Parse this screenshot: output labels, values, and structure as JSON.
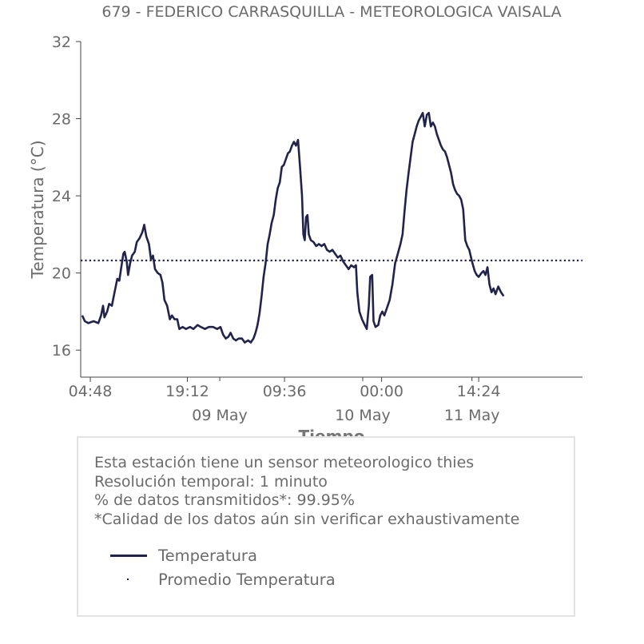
{
  "chart_data": {
    "type": "line",
    "title": "679 - FEDERICO CARRASQUILLA - METEOROLOGICA VAISALA",
    "xlabel": "Tiempo",
    "ylabel": "Temperatura (°C)",
    "ylim": [
      14.6,
      32
    ],
    "yticks": [
      16,
      20,
      24,
      28,
      32
    ],
    "x_range_hours": [
      0,
      61.3
    ],
    "x_unit": "hours since 2024-05-08 04:48 (approx.)",
    "xticks": [
      {
        "h": 0,
        "label": "04:48"
      },
      {
        "h": 14.4,
        "label": "19:12"
      },
      {
        "h": 28.8,
        "label": "09:36"
      },
      {
        "h": 43.2,
        "label": "00:00"
      },
      {
        "h": 57.6,
        "label": "14:24"
      }
    ],
    "minor_xticks_h": [
      19.2,
      40.4,
      56.6
    ],
    "date_labels": [
      {
        "h": 19.2,
        "label": "09 May"
      },
      {
        "h": 40.4,
        "label": "10 May"
      },
      {
        "h": 56.6,
        "label": "11 May"
      }
    ],
    "series": [
      {
        "name": "Temperatura",
        "color": "#22234a",
        "style": "solid",
        "points": [
          [
            -1.2,
            17.8
          ],
          [
            -0.8,
            17.5
          ],
          [
            -0.3,
            17.4
          ],
          [
            0.5,
            17.5
          ],
          [
            1.2,
            17.4
          ],
          [
            1.6,
            17.8
          ],
          [
            1.9,
            18.3
          ],
          [
            2.1,
            17.7
          ],
          [
            2.5,
            18.0
          ],
          [
            2.8,
            18.4
          ],
          [
            3.2,
            18.3
          ],
          [
            3.6,
            19.0
          ],
          [
            4.0,
            19.7
          ],
          [
            4.3,
            19.6
          ],
          [
            4.6,
            20.3
          ],
          [
            4.9,
            21.0
          ],
          [
            5.1,
            21.1
          ],
          [
            5.4,
            20.6
          ],
          [
            5.6,
            19.9
          ],
          [
            5.9,
            20.5
          ],
          [
            6.2,
            20.9
          ],
          [
            6.6,
            21.1
          ],
          [
            6.9,
            21.6
          ],
          [
            7.3,
            21.8
          ],
          [
            7.7,
            22.1
          ],
          [
            8.0,
            22.5
          ],
          [
            8.3,
            21.9
          ],
          [
            8.7,
            21.5
          ],
          [
            9.0,
            20.7
          ],
          [
            9.3,
            20.9
          ],
          [
            9.6,
            20.2
          ],
          [
            10.0,
            20.0
          ],
          [
            10.4,
            19.9
          ],
          [
            10.7,
            19.5
          ],
          [
            11.0,
            18.6
          ],
          [
            11.4,
            18.3
          ],
          [
            11.8,
            17.6
          ],
          [
            12.1,
            17.8
          ],
          [
            12.5,
            17.6
          ],
          [
            12.9,
            17.6
          ],
          [
            13.2,
            17.1
          ],
          [
            13.7,
            17.2
          ],
          [
            14.2,
            17.1
          ],
          [
            14.8,
            17.2
          ],
          [
            15.3,
            17.1
          ],
          [
            15.9,
            17.3
          ],
          [
            16.4,
            17.2
          ],
          [
            17.0,
            17.1
          ],
          [
            17.6,
            17.2
          ],
          [
            18.2,
            17.2
          ],
          [
            18.8,
            17.1
          ],
          [
            19.3,
            17.2
          ],
          [
            19.7,
            16.8
          ],
          [
            20.1,
            16.6
          ],
          [
            20.5,
            16.7
          ],
          [
            20.8,
            16.9
          ],
          [
            21.2,
            16.6
          ],
          [
            21.6,
            16.5
          ],
          [
            22.0,
            16.6
          ],
          [
            22.5,
            16.6
          ],
          [
            22.9,
            16.4
          ],
          [
            23.4,
            16.5
          ],
          [
            23.8,
            16.4
          ],
          [
            24.2,
            16.6
          ],
          [
            24.5,
            16.9
          ],
          [
            24.8,
            17.3
          ],
          [
            25.1,
            17.9
          ],
          [
            25.4,
            18.8
          ],
          [
            25.7,
            19.8
          ],
          [
            26.0,
            20.5
          ],
          [
            26.3,
            21.5
          ],
          [
            26.6,
            22.0
          ],
          [
            26.9,
            22.6
          ],
          [
            27.2,
            23.0
          ],
          [
            27.5,
            23.8
          ],
          [
            27.8,
            24.4
          ],
          [
            28.1,
            24.7
          ],
          [
            28.4,
            25.5
          ],
          [
            28.7,
            25.6
          ],
          [
            29.0,
            25.9
          ],
          [
            29.3,
            26.2
          ],
          [
            29.6,
            26.3
          ],
          [
            29.9,
            26.6
          ],
          [
            30.2,
            26.8
          ],
          [
            30.5,
            26.6
          ],
          [
            30.8,
            26.9
          ],
          [
            31.1,
            25.5
          ],
          [
            31.4,
            24.0
          ],
          [
            31.6,
            22.0
          ],
          [
            31.8,
            21.7
          ],
          [
            32.0,
            22.9
          ],
          [
            32.2,
            23.0
          ],
          [
            32.4,
            22.0
          ],
          [
            32.7,
            21.7
          ],
          [
            33.1,
            21.6
          ],
          [
            33.5,
            21.4
          ],
          [
            33.9,
            21.5
          ],
          [
            34.3,
            21.4
          ],
          [
            34.7,
            21.5
          ],
          [
            35.1,
            21.2
          ],
          [
            35.5,
            21.1
          ],
          [
            35.9,
            21.2
          ],
          [
            36.3,
            21.0
          ],
          [
            36.7,
            20.8
          ],
          [
            37.1,
            20.9
          ],
          [
            37.5,
            20.6
          ],
          [
            37.9,
            20.4
          ],
          [
            38.3,
            20.2
          ],
          [
            38.7,
            20.4
          ],
          [
            39.1,
            20.3
          ],
          [
            39.4,
            20.4
          ],
          [
            39.6,
            19.0
          ],
          [
            39.9,
            18.0
          ],
          [
            40.3,
            17.6
          ],
          [
            40.7,
            17.3
          ],
          [
            41.0,
            17.1
          ],
          [
            41.3,
            18.3
          ],
          [
            41.5,
            19.8
          ],
          [
            41.8,
            19.9
          ],
          [
            42.0,
            17.5
          ],
          [
            42.3,
            17.2
          ],
          [
            42.7,
            17.3
          ],
          [
            43.0,
            17.8
          ],
          [
            43.3,
            18.0
          ],
          [
            43.6,
            17.8
          ],
          [
            44.0,
            18.2
          ],
          [
            44.4,
            18.6
          ],
          [
            44.8,
            19.4
          ],
          [
            45.2,
            20.5
          ],
          [
            45.6,
            21.0
          ],
          [
            46.0,
            21.5
          ],
          [
            46.3,
            22.0
          ],
          [
            46.6,
            23.2
          ],
          [
            46.9,
            24.3
          ],
          [
            47.2,
            25.2
          ],
          [
            47.5,
            26.0
          ],
          [
            47.8,
            26.8
          ],
          [
            48.1,
            27.2
          ],
          [
            48.4,
            27.6
          ],
          [
            48.7,
            27.9
          ],
          [
            49.0,
            28.1
          ],
          [
            49.3,
            28.3
          ],
          [
            49.6,
            27.6
          ],
          [
            49.9,
            28.2
          ],
          [
            50.2,
            28.3
          ],
          [
            50.5,
            27.6
          ],
          [
            50.8,
            27.8
          ],
          [
            51.1,
            27.6
          ],
          [
            51.4,
            27.2
          ],
          [
            51.7,
            26.9
          ],
          [
            52.0,
            26.6
          ],
          [
            52.3,
            26.4
          ],
          [
            52.6,
            26.3
          ],
          [
            52.9,
            26.0
          ],
          [
            53.2,
            25.6
          ],
          [
            53.5,
            25.2
          ],
          [
            53.8,
            24.6
          ],
          [
            54.1,
            24.3
          ],
          [
            54.4,
            24.1
          ],
          [
            54.7,
            24.0
          ],
          [
            55.0,
            23.8
          ],
          [
            55.3,
            23.3
          ],
          [
            55.6,
            21.7
          ],
          [
            55.9,
            21.4
          ],
          [
            56.2,
            21.2
          ],
          [
            56.6,
            20.6
          ],
          [
            57.0,
            20.1
          ],
          [
            57.3,
            19.9
          ],
          [
            57.6,
            19.8
          ],
          [
            58.0,
            20.0
          ],
          [
            58.3,
            20.1
          ],
          [
            58.6,
            19.9
          ],
          [
            58.9,
            20.3
          ],
          [
            59.2,
            19.4
          ],
          [
            59.5,
            19.0
          ],
          [
            59.8,
            19.2
          ],
          [
            60.1,
            18.9
          ],
          [
            60.5,
            19.3
          ],
          [
            60.9,
            19.0
          ],
          [
            61.3,
            18.8
          ]
        ]
      },
      {
        "name": "Promedio Temperatura",
        "color": "#22234a",
        "style": "dotted",
        "constant": 20.65
      }
    ],
    "legend": {
      "entries": [
        {
          "label": "Temperatura",
          "marker": "line"
        },
        {
          "label": "Promedio Temperatura",
          "marker": "dot"
        }
      ]
    }
  },
  "info": {
    "lines": [
      "Esta estación tiene un sensor meteorologico thies",
      "Resolución temporal: 1 minuto",
      "% de datos transmitidos*: 99.95%",
      "*Calidad de los datos aún sin verificar exhaustivamente"
    ]
  }
}
